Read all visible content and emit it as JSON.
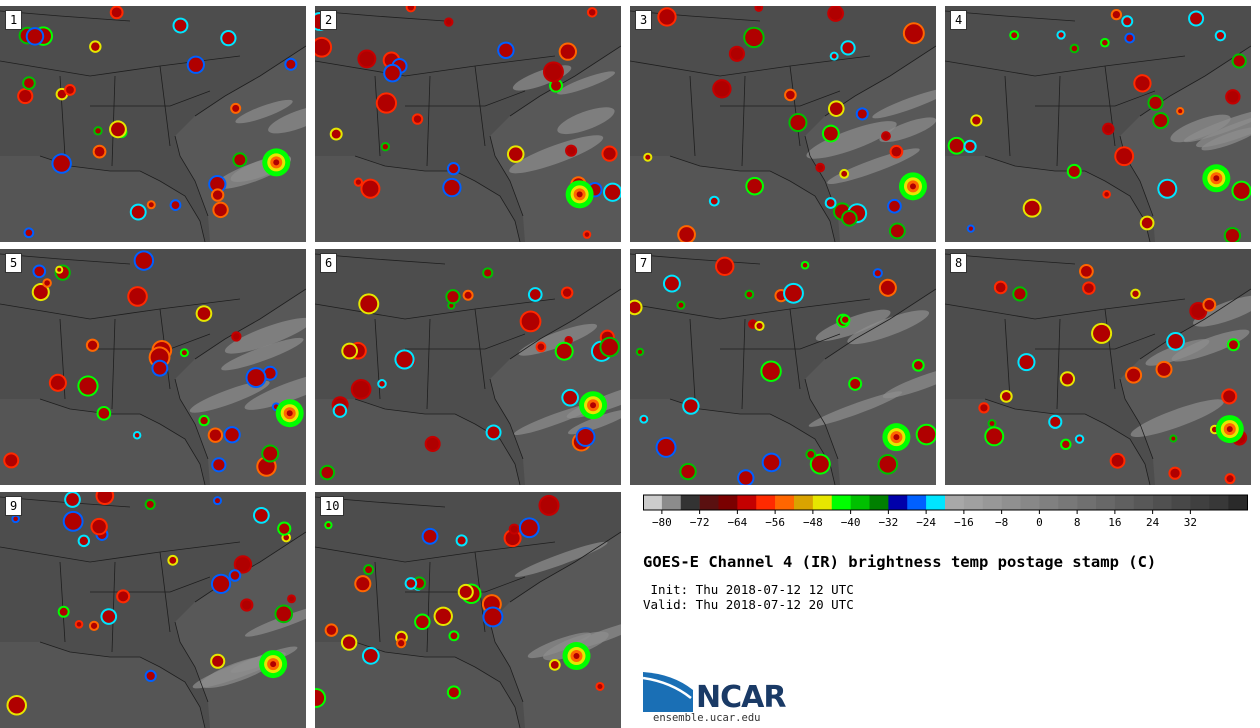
{
  "panels": [
    {
      "label": "1"
    },
    {
      "label": "2"
    },
    {
      "label": "3"
    },
    {
      "label": "4"
    },
    {
      "label": "5"
    },
    {
      "label": "6"
    },
    {
      "label": "7"
    },
    {
      "label": "8"
    },
    {
      "label": "9"
    },
    {
      "label": "10"
    }
  ],
  "colorbar": {
    "tick_labels": [
      "−80",
      "−72",
      "−64",
      "−56",
      "−48",
      "−40",
      "−32",
      "−24",
      "−16",
      "−8",
      "0",
      "8",
      "16",
      "24",
      "32"
    ],
    "colors": [
      "#cccccc",
      "#8c8c8c",
      "#333333",
      "#5a1010",
      "#7a0000",
      "#c40000",
      "#ff2a00",
      "#ff6600",
      "#d9a300",
      "#e6e600",
      "#00ff00",
      "#00c000",
      "#008000",
      "#0000aa",
      "#0060ff",
      "#00e5ff",
      "#a8a8a8",
      "#a0a0a0",
      "#989898",
      "#909090",
      "#888888",
      "#808080",
      "#787878",
      "#707070",
      "#686868",
      "#606060",
      "#585858",
      "#505050",
      "#484848",
      "#404040",
      "#383838",
      "#2a2a2a"
    ]
  },
  "title": "GOES-E Channel 4 (IR) brightness temp postage stamp (C)",
  "init_line": " Init: Thu 2018-07-12 12 UTC",
  "valid_line": "Valid: Thu 2018-07-12 20 UTC",
  "logo": {
    "name": "NCAR",
    "url": "ensemble.ucar.edu"
  }
}
